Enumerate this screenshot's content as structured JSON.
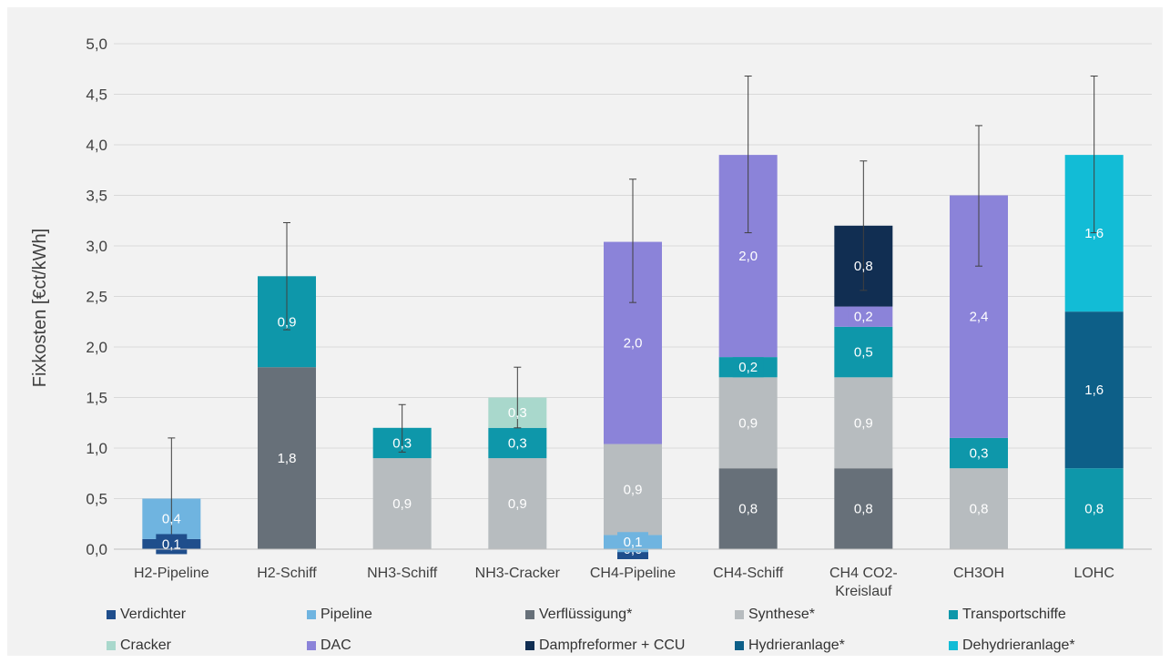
{
  "chart_data": {
    "type": "bar",
    "stacked": true,
    "title": "",
    "xlabel": "",
    "ylabel": "Fixkosten [€ct/kWh]",
    "ylim": [
      0,
      5
    ],
    "yticks": [
      "0,0",
      "0,5",
      "1,0",
      "1,5",
      "2,0",
      "2,5",
      "3,0",
      "3,5",
      "4,0",
      "4,5",
      "5,0"
    ],
    "grid": true,
    "legend_position": "bottom",
    "categories": [
      [
        "H2-Pipeline"
      ],
      [
        "H2-Schiff"
      ],
      [
        "NH3-Schiff"
      ],
      [
        "NH3-Cracker"
      ],
      [
        "CH4-Pipeline"
      ],
      [
        "CH4-Schiff"
      ],
      [
        "CH4 CO2-",
        "Kreislauf"
      ],
      [
        "CH3OH"
      ],
      [
        "LOHC"
      ]
    ],
    "series": [
      {
        "name": "Verdichter",
        "color": "#1f4e8c",
        "values": [
          0.1,
          0,
          0,
          0,
          0.0,
          0,
          0,
          0,
          0
        ],
        "labels": [
          "0,1",
          "",
          "",
          "",
          "0,0",
          "",
          "",
          "",
          ""
        ]
      },
      {
        "name": "Pipeline",
        "color": "#6fb4e0",
        "values": [
          0.4,
          0,
          0,
          0,
          0.14,
          0,
          0,
          0,
          0
        ],
        "labels": [
          "0,4",
          "",
          "",
          "",
          "0,1",
          "",
          "",
          "",
          ""
        ]
      },
      {
        "name": "Verflüssigung*",
        "color": "#677079",
        "values": [
          0,
          1.8,
          0,
          0,
          0,
          0.8,
          0.8,
          0,
          0
        ],
        "labels": [
          "",
          "1,8",
          "",
          "",
          "",
          "0,8",
          "0,8",
          "",
          ""
        ]
      },
      {
        "name": "Synthese*",
        "color": "#b7bcbf",
        "values": [
          0,
          0,
          0.9,
          0.9,
          0.9,
          0.9,
          0.9,
          0.8,
          0
        ],
        "labels": [
          "",
          "",
          "0,9",
          "0,9",
          "0,9",
          "0,9",
          "0,9",
          "0,8",
          ""
        ]
      },
      {
        "name": "Transportschiffe",
        "color": "#0e97aa",
        "values": [
          0,
          0.9,
          0.3,
          0.3,
          0,
          0.2,
          0.5,
          0.3,
          0.8
        ],
        "labels": [
          "",
          "0,9",
          "0,3",
          "0,3",
          "",
          "0,2",
          "0,5",
          "0,3",
          "0,8"
        ]
      },
      {
        "name": "Cracker",
        "color": "#a9d8cc",
        "values": [
          0,
          0,
          0,
          0.3,
          0,
          0,
          0,
          0,
          0
        ],
        "labels": [
          "",
          "",
          "",
          "0,3",
          "",
          "",
          "",
          "",
          ""
        ]
      },
      {
        "name": "DAC",
        "color": "#8b83d9",
        "values": [
          0,
          0,
          0,
          0,
          2.0,
          2.0,
          0.2,
          2.4,
          0
        ],
        "labels": [
          "",
          "",
          "",
          "",
          "2,0",
          "2,0",
          "0,2",
          "2,4",
          ""
        ]
      },
      {
        "name": "Dampfreformer + CCU",
        "color": "#112e52",
        "values": [
          0,
          0,
          0,
          0,
          0,
          0,
          0.8,
          0,
          0
        ],
        "labels": [
          "",
          "",
          "",
          "",
          "",
          "",
          "0,8",
          "",
          ""
        ]
      },
      {
        "name": "Hydrieranlage*",
        "color": "#0d5f88",
        "values": [
          0,
          0,
          0,
          0,
          0,
          0,
          0,
          0,
          1.55
        ],
        "labels": [
          "",
          "",
          "",
          "",
          "",
          "",
          "",
          "",
          "1,6"
        ]
      },
      {
        "name": "Dehydrieranlage*",
        "color": "#12bcd6",
        "values": [
          0,
          0,
          0,
          0,
          0,
          0,
          0,
          0,
          1.55
        ],
        "labels": [
          "",
          "",
          "",
          "",
          "",
          "",
          "",
          "",
          "1,6"
        ]
      }
    ],
    "error_bars": [
      {
        "low": 0.0,
        "high": 1.1
      },
      {
        "low": 2.17,
        "high": 3.23
      },
      {
        "low": 0.96,
        "high": 1.43
      },
      {
        "low": 1.2,
        "high": 1.8
      },
      {
        "low": 2.44,
        "high": 3.66
      },
      {
        "low": 3.13,
        "high": 4.68
      },
      {
        "low": 2.56,
        "high": 3.84
      },
      {
        "low": 2.8,
        "high": 4.19
      },
      {
        "low": 3.13,
        "high": 4.68
      }
    ]
  }
}
